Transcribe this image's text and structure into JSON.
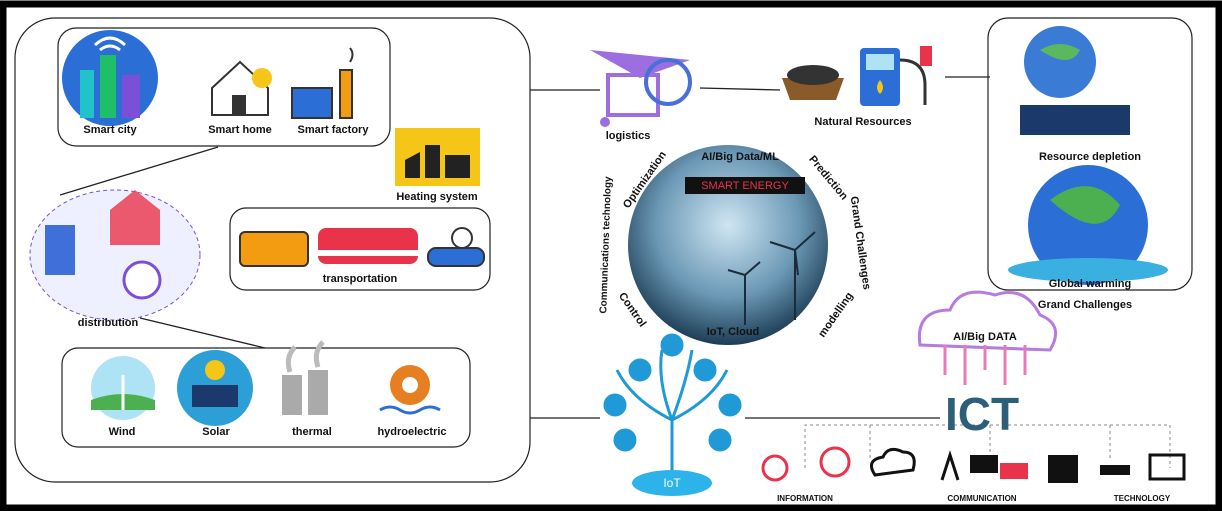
{
  "left_panel": {
    "consumers": [
      "Smart city",
      "Smart home",
      "Smart factory"
    ],
    "heating": "Heating system",
    "transportation": "transportation",
    "distribution": "distribution",
    "generation": [
      "Wind",
      "Solar",
      "thermal",
      "hydroelectric"
    ]
  },
  "supply": {
    "logistics": "logistics",
    "natural_resources": "Natural Resources"
  },
  "grand_challenges": {
    "items": [
      "Resource depletion",
      "Global warming"
    ],
    "label": "Grand Challenges"
  },
  "smart_energy": {
    "title": "SMART ENERGY",
    "ring": [
      "AI/Big Data/ML",
      "Prediction",
      "Grand Challenges",
      "modelling",
      "IoT, Cloud",
      "Control",
      "Communications technology",
      "Optimization"
    ]
  },
  "iot": "IoT",
  "ict": {
    "title": "ICT",
    "ai": "AI/Big DATA",
    "pillars": [
      "INFORMATION",
      "COMMUNICATION",
      "TECHNOLOGY"
    ]
  }
}
